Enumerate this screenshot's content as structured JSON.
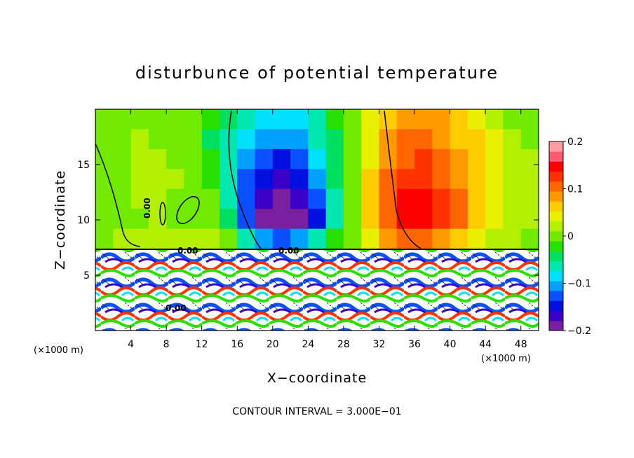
{
  "chart_data": {
    "type": "heatmap",
    "title": "disturbunce of potential temperature",
    "xlabel": "X−coordinate",
    "ylabel": "Z−coordinate",
    "x_unit": "(×1000 m)",
    "y_unit": "(×1000 m)",
    "xlim": [
      0,
      50
    ],
    "ylim": [
      0,
      20
    ],
    "x_ticks": [
      "4",
      "8",
      "12",
      "16",
      "20",
      "24",
      "28",
      "32",
      "36",
      "40",
      "44",
      "48"
    ],
    "y_ticks": [
      "5",
      "10",
      "15"
    ],
    "footer": "CONTOUR INTERVAL = 3.000E−01",
    "contour_labels": [
      "0.00"
    ],
    "colorbar": {
      "range": [
        -0.2,
        0.2
      ],
      "ticks": [
        "0.2",
        "0.1",
        "0",
        "−0.1",
        "−0.2"
      ],
      "colors": [
        "#7a1fa0",
        "#3a00c8",
        "#0010e0",
        "#0a50ff",
        "#00a0ff",
        "#00e0ff",
        "#00e8b0",
        "#00e060",
        "#28e000",
        "#70ea00",
        "#b0f000",
        "#e8f000",
        "#ffcc00",
        "#ff9900",
        "#ff6600",
        "#ff3300",
        "#ff0000",
        "#ff5a6e",
        "#ff9aa0"
      ]
    },
    "series": [
      {
        "values": [
          [
            0.0,
            0.01,
            0.01,
            0.01,
            0.0,
            -0.01,
            -0.03,
            -0.05,
            -0.07,
            -0.09,
            -0.09,
            -0.08,
            -0.06,
            -0.03,
            0.0,
            0.04,
            0.07,
            0.09,
            0.09,
            0.08,
            0.07,
            0.05,
            0.03,
            0.01,
            0.0
          ],
          [
            0.0,
            0.01,
            0.02,
            0.01,
            0.0,
            -0.01,
            -0.04,
            -0.06,
            -0.09,
            -0.11,
            -0.11,
            -0.1,
            -0.07,
            -0.04,
            0.0,
            0.05,
            0.08,
            0.1,
            0.1,
            0.09,
            0.07,
            0.06,
            0.04,
            0.02,
            0.01
          ],
          [
            0.0,
            0.01,
            0.02,
            0.02,
            0.01,
            0.0,
            -0.03,
            -0.07,
            -0.11,
            -0.13,
            -0.14,
            -0.12,
            -0.09,
            -0.05,
            0.0,
            0.05,
            0.09,
            0.11,
            0.12,
            0.1,
            0.08,
            0.06,
            0.05,
            0.03,
            0.02
          ],
          [
            0.0,
            0.01,
            0.02,
            0.03,
            0.02,
            0.0,
            -0.02,
            -0.07,
            -0.13,
            -0.15,
            -0.16,
            -0.14,
            -0.1,
            -0.05,
            0.0,
            0.06,
            0.1,
            0.13,
            0.13,
            0.11,
            0.09,
            0.07,
            0.05,
            0.03,
            0.02
          ],
          [
            0.0,
            0.0,
            0.02,
            0.02,
            0.01,
            0.0,
            -0.01,
            -0.06,
            -0.13,
            -0.17,
            -0.18,
            -0.16,
            -0.12,
            -0.06,
            0.0,
            0.06,
            0.11,
            0.14,
            0.14,
            0.12,
            0.1,
            0.07,
            0.05,
            0.03,
            0.02
          ],
          [
            0.0,
            0.0,
            0.01,
            0.02,
            0.01,
            0.0,
            0.0,
            -0.05,
            -0.12,
            -0.18,
            -0.19,
            -0.18,
            -0.14,
            -0.07,
            0.0,
            0.07,
            0.11,
            0.14,
            0.14,
            0.12,
            0.1,
            0.07,
            0.05,
            0.03,
            0.02
          ],
          [
            0.01,
            0.02,
            0.03,
            0.02,
            0.02,
            0.03,
            0.02,
            -0.01,
            -0.06,
            -0.1,
            -0.12,
            -0.11,
            -0.07,
            -0.03,
            0.0,
            0.05,
            0.08,
            0.1,
            0.1,
            0.08,
            0.06,
            0.04,
            0.03,
            0.02,
            0.01
          ]
        ]
      }
    ]
  }
}
